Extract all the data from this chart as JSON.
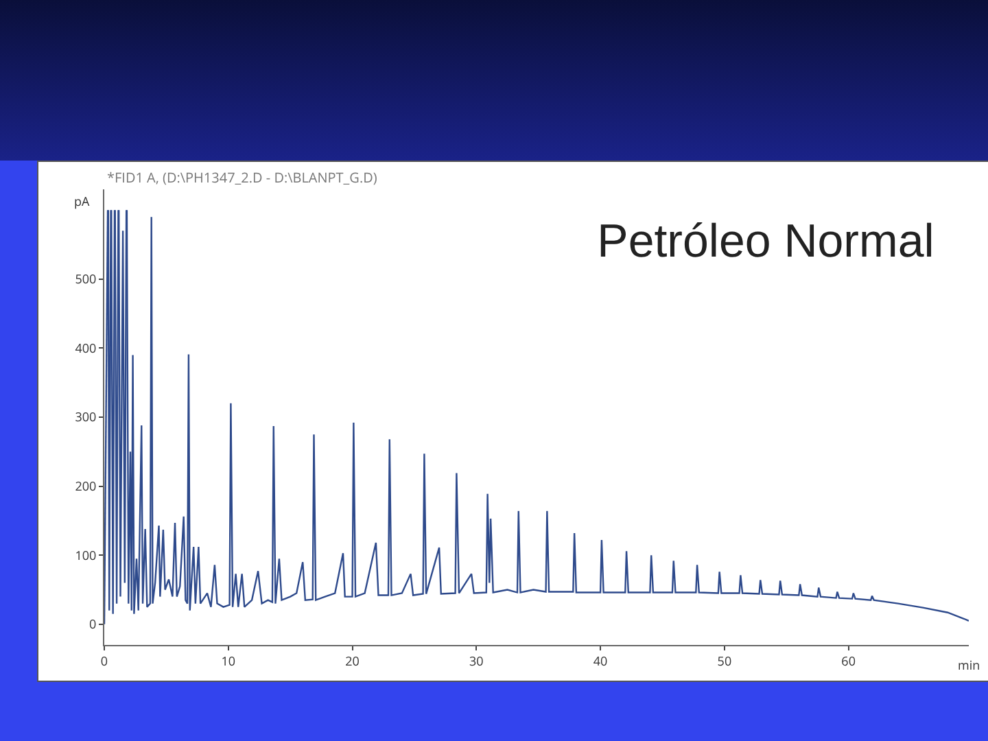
{
  "chart_data": {
    "type": "line",
    "title": "Petróleo Normal",
    "xlabel": "min",
    "ylabel": "pA",
    "annotations": [
      "*FID1 A, (D:\\PH1347_2.D - D:\\BLANPT_G.D)"
    ],
    "x": [
      0,
      0.28,
      0.3,
      0.32,
      0.4,
      0.53,
      0.55,
      0.57,
      0.7,
      0.83,
      0.85,
      0.87,
      1.0,
      1.13,
      1.15,
      1.17,
      1.3,
      1.5,
      1.65,
      1.78,
      1.8,
      1.82,
      1.95,
      2.1,
      2.2,
      2.3,
      2.4,
      2.6,
      2.75,
      3.0,
      3.1,
      3.3,
      3.45,
      3.7,
      3.8,
      3.9,
      4.1,
      4.4,
      4.5,
      4.75,
      4.9,
      5.2,
      5.5,
      5.7,
      5.85,
      6.1,
      6.4,
      6.55,
      6.7,
      6.8,
      6.9,
      7.2,
      7.35,
      7.6,
      7.75,
      8.3,
      8.6,
      8.9,
      9.1,
      9.6,
      10.1,
      10.2,
      10.35,
      10.6,
      10.8,
      11.1,
      11.3,
      11.9,
      12.4,
      12.7,
      13.2,
      13.55,
      13.65,
      13.8,
      14.1,
      14.3,
      15.0,
      15.5,
      16.0,
      16.2,
      16.8,
      16.9,
      17.05,
      17.8,
      18.6,
      19.25,
      19.4,
      20.0,
      20.1,
      20.25,
      21.0,
      21.9,
      22.1,
      22.9,
      23.0,
      23.15,
      24.0,
      24.7,
      24.9,
      25.7,
      25.8,
      25.95,
      27.0,
      27.15,
      28.3,
      28.4,
      28.6,
      29.6,
      29.8,
      30.8,
      30.9,
      31.05,
      31.15,
      31.35,
      32.5,
      33.3,
      33.4,
      33.55,
      34.6,
      35.6,
      35.7,
      35.85,
      37.0,
      37.8,
      37.9,
      38.05,
      40.0,
      40.1,
      40.25,
      42.0,
      42.1,
      42.25,
      44.0,
      44.1,
      44.25,
      45.8,
      45.9,
      46.05,
      47.7,
      47.8,
      47.95,
      49.5,
      49.6,
      49.75,
      51.2,
      51.3,
      51.45,
      52.8,
      52.9,
      53.05,
      54.4,
      54.5,
      54.65,
      56.0,
      56.1,
      56.25,
      57.5,
      57.6,
      57.75,
      59.0,
      59.1,
      59.25,
      60.3,
      60.4,
      60.55,
      61.8,
      61.9,
      62.05,
      64,
      66,
      68,
      69.3,
      69.7
    ],
    "series": [
      {
        "color": "#2e4a8c",
        "values": [
          0,
          600,
          null,
          600,
          20,
          600,
          null,
          600,
          15,
          600,
          null,
          600,
          30,
          600,
          null,
          600,
          40,
          570,
          60,
          600,
          null,
          600,
          30,
          250,
          20,
          390,
          15,
          95,
          20,
          288,
          30,
          138,
          25,
          30,
          590,
          30,
          60,
          143,
          40,
          137,
          50,
          65,
          40,
          147,
          40,
          55,
          156,
          35,
          30,
          391,
          20,
          112,
          30,
          112,
          30,
          45,
          25,
          86,
          30,
          25,
          28,
          320,
          25,
          73,
          25,
          73,
          25,
          35,
          77,
          30,
          35,
          32,
          287,
          30,
          95,
          35,
          40,
          45,
          90,
          35,
          36,
          275,
          35,
          40,
          45,
          103,
          40,
          40,
          292,
          40,
          45,
          118,
          42,
          42,
          268,
          42,
          45,
          73,
          42,
          44,
          247,
          44,
          111,
          44,
          45,
          219,
          45,
          73,
          45,
          46,
          189,
          60,
          153,
          46,
          50,
          46,
          164,
          46,
          50,
          47,
          164,
          47,
          47,
          47,
          132,
          46,
          46,
          122,
          46,
          46,
          106,
          46,
          46,
          100,
          46,
          46,
          92,
          46,
          46,
          86,
          46,
          45,
          76,
          45,
          45,
          71,
          45,
          44,
          64,
          44,
          43,
          63,
          43,
          42,
          58,
          42,
          40,
          53,
          40,
          38,
          47,
          38,
          37,
          45,
          37,
          35,
          41,
          35,
          30,
          24,
          17,
          8,
          5
        ]
      }
    ],
    "xlim": [
      0,
      69.7
    ],
    "ylim": [
      -30,
      630
    ],
    "xticks": [
      0,
      10,
      20,
      30,
      40,
      50,
      60
    ],
    "yticks": [
      0,
      100,
      200,
      300,
      400,
      500
    ],
    "grid": false,
    "marker": "none",
    "line_style": "solid"
  }
}
